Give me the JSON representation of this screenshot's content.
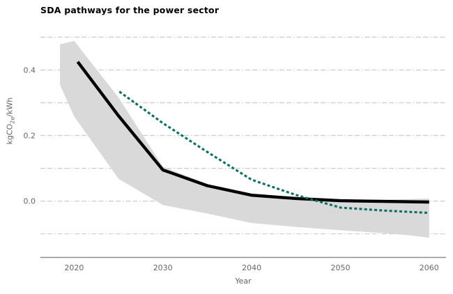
{
  "title": "SDA pathways for the power sector",
  "chart_data": {
    "type": "line",
    "title": "SDA pathways for the power sector",
    "xlabel": "Year",
    "ylabel": "kgCO2e/kWh",
    "ylabel_parts": {
      "pre": "kgCO",
      "sub": "2e",
      "post": "/kWh"
    },
    "legend": "none",
    "grid": "horizontal dash-dot lines every 0.1",
    "x_range": [
      2016.2,
      2061.9
    ],
    "y_range": [
      -0.173,
      0.52
    ],
    "x_ticks": [
      {
        "value": 2020,
        "label": "2020"
      },
      {
        "value": 2030,
        "label": "2030"
      },
      {
        "value": 2040,
        "label": "2040"
      },
      {
        "value": 2050,
        "label": "2050"
      },
      {
        "value": 2060,
        "label": "2060"
      }
    ],
    "y_ticks": [
      {
        "value": 0.0,
        "label": "0.0"
      },
      {
        "value": 0.2,
        "label": "0.2"
      },
      {
        "value": 0.4,
        "label": "0.4"
      }
    ],
    "grid_values": [
      -0.1,
      0.0,
      0.1,
      0.2,
      0.3,
      0.4,
      0.5
    ],
    "colors": {
      "band": "#d9d9d9",
      "solid_line": "#000000",
      "dashed_line": "#0d6e63",
      "gridline": "#cccccc",
      "axis_line": "#8c8c8c",
      "tick_text": "#666666"
    },
    "series": [
      {
        "name": "uncertainty-band",
        "type": "band",
        "upper": [
          [
            2018.4,
            0.478
          ],
          [
            2020,
            0.489
          ],
          [
            2025,
            0.316
          ],
          [
            2030,
            0.105
          ],
          [
            2035,
            0.052
          ],
          [
            2040,
            0.022
          ],
          [
            2045,
            0.012
          ],
          [
            2050,
            0.006
          ],
          [
            2055,
            0.004
          ],
          [
            2060,
            0.008
          ]
        ],
        "lower": [
          [
            2018.4,
            0.355
          ],
          [
            2020,
            0.258
          ],
          [
            2025,
            0.068
          ],
          [
            2030,
            -0.012
          ],
          [
            2035,
            -0.038
          ],
          [
            2040,
            -0.067
          ],
          [
            2045,
            -0.079
          ],
          [
            2050,
            -0.089
          ],
          [
            2055,
            -0.098
          ],
          [
            2058,
            -0.105
          ],
          [
            2060,
            -0.112
          ]
        ]
      },
      {
        "name": "solid-pathway",
        "type": "line",
        "style": "solid",
        "points": [
          [
            2020.4,
            0.425
          ],
          [
            2025,
            0.26
          ],
          [
            2030,
            0.095
          ],
          [
            2035,
            0.047
          ],
          [
            2040,
            0.018
          ],
          [
            2045,
            0.008
          ],
          [
            2050,
            0.001
          ],
          [
            2055,
            -0.001
          ],
          [
            2060,
            -0.003
          ]
        ]
      },
      {
        "name": "dashed-target-pathway",
        "type": "line",
        "style": "dashed",
        "points": [
          [
            2025.1,
            0.334
          ],
          [
            2030,
            0.238
          ],
          [
            2035,
            0.15
          ],
          [
            2040,
            0.065
          ],
          [
            2045,
            0.0185
          ],
          [
            2050,
            -0.02
          ],
          [
            2055,
            -0.029
          ],
          [
            2060,
            -0.036
          ]
        ]
      }
    ]
  }
}
